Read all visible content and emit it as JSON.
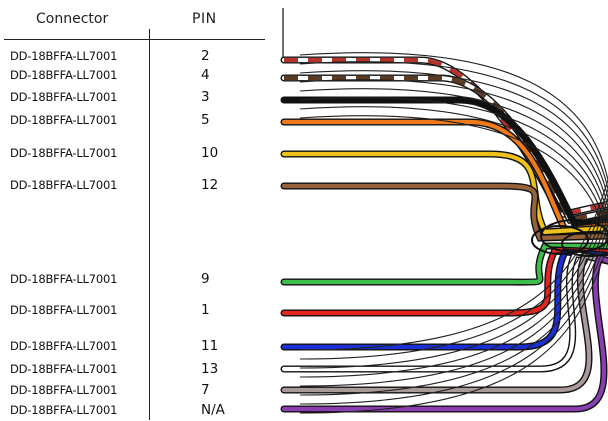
{
  "headers": {
    "connector": "Connector",
    "pin": "PIN"
  },
  "rows": [
    {
      "connector": "DD-18BFFA-LL7001",
      "pin": "2",
      "wire": "white-red",
      "colors": [
        "#ffffff",
        "#b5332a"
      ]
    },
    {
      "connector": "DD-18BFFA-LL7001",
      "pin": "4",
      "wire": "white-brown",
      "colors": [
        "#ffffff",
        "#5a3a22"
      ]
    },
    {
      "connector": "DD-18BFFA-LL7001",
      "pin": "3",
      "wire": "black",
      "colors": [
        "#111111"
      ]
    },
    {
      "connector": "DD-18BFFA-LL7001",
      "pin": "5",
      "wire": "orange",
      "colors": [
        "#ee7a1c"
      ]
    },
    {
      "connector": "DD-18BFFA-LL7001",
      "pin": "10",
      "wire": "yellow",
      "colors": [
        "#efc21b"
      ]
    },
    {
      "connector": "DD-18BFFA-LL7001",
      "pin": "12",
      "wire": "brown",
      "colors": [
        "#96623c"
      ]
    },
    {
      "connector": "DD-18BFFA-LL7001",
      "pin": "9",
      "wire": "green",
      "colors": [
        "#3cbf4a"
      ]
    },
    {
      "connector": "DD-18BFFA-LL7001",
      "pin": "1",
      "wire": "red",
      "colors": [
        "#e32520"
      ]
    },
    {
      "connector": "DD-18BFFA-LL7001",
      "pin": "11",
      "wire": "blue",
      "colors": [
        "#1c2fd6"
      ]
    },
    {
      "connector": "DD-18BFFA-LL7001",
      "pin": "13",
      "wire": "white",
      "colors": [
        "#ffffff"
      ]
    },
    {
      "connector": "DD-18BFFA-LL7001",
      "pin": "7",
      "wire": "gray",
      "colors": [
        "#a89a98"
      ]
    },
    {
      "connector": "DD-18BFFA-LL7001",
      "pin": "N/A",
      "wire": "purple",
      "colors": [
        "#8a3fb0"
      ]
    }
  ]
}
